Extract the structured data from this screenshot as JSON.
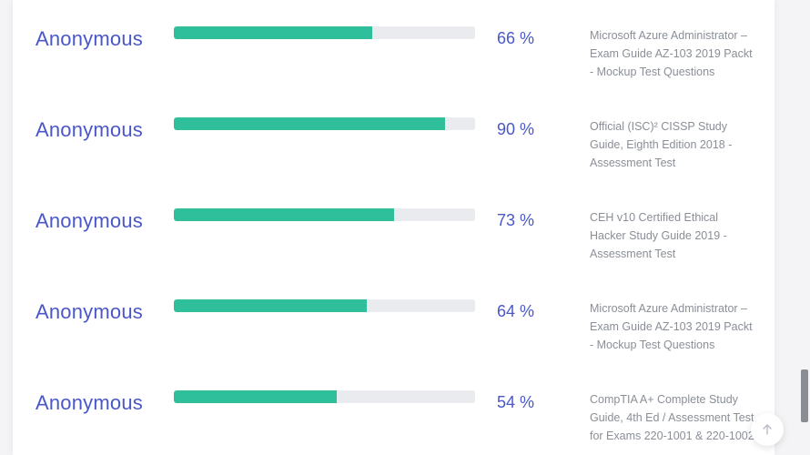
{
  "colors": {
    "accent_text": "#4a57c9",
    "bar_fill": "#2fbf9b",
    "bar_track": "#e9ebee",
    "description_text": "#8a8f97"
  },
  "rows": [
    {
      "name": "Anonymous",
      "percent_label": "66 %",
      "progress": 0.66,
      "description": "Microsoft Azure Administrator – Exam Guide AZ-103 2019 Packt - Mockup Test Questions"
    },
    {
      "name": "Anonymous",
      "percent_label": "90 %",
      "progress": 0.9,
      "description": "Official (ISC)² CISSP Study Guide, Eighth Edition 2018 - Assessment Test"
    },
    {
      "name": "Anonymous",
      "percent_label": "73 %",
      "progress": 0.73,
      "description": "CEH v10 Certified Ethical Hacker Study Guide 2019 - Assessment Test"
    },
    {
      "name": "Anonymous",
      "percent_label": "64 %",
      "progress": 0.64,
      "description": "Microsoft Azure Administrator – Exam Guide AZ-103 2019 Packt - Mockup Test Questions"
    },
    {
      "name": "Anonymous",
      "percent_label": "54 %",
      "progress": 0.54,
      "description": "CompTIA A+ Complete Study Guide, 4th Ed / Assessment Test for Exams 220-1001 & 220-1002"
    }
  ],
  "back_to_top_icon": "arrow-up-icon"
}
